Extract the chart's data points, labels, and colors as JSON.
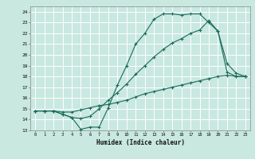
{
  "xlabel": "Humidex (Indice chaleur)",
  "bg_color": "#c8e8e0",
  "grid_color": "#ffffff",
  "line_color": "#1a6b5a",
  "ylim": [
    13,
    24.5
  ],
  "xlim": [
    -0.5,
    23.5
  ],
  "yticks": [
    13,
    14,
    15,
    16,
    17,
    18,
    19,
    20,
    21,
    22,
    23,
    24
  ],
  "xticks": [
    0,
    1,
    2,
    3,
    4,
    5,
    6,
    7,
    8,
    9,
    10,
    11,
    12,
    13,
    14,
    15,
    16,
    17,
    18,
    19,
    20,
    21,
    22,
    23
  ],
  "line1_x": [
    0,
    1,
    2,
    3,
    4,
    5,
    6,
    7,
    8,
    9,
    10,
    11,
    12,
    13,
    14,
    15,
    16,
    17,
    18,
    19,
    20,
    21,
    22,
    23
  ],
  "line1_y": [
    14.8,
    14.8,
    14.8,
    14.5,
    14.2,
    13.1,
    13.3,
    13.3,
    15.1,
    17.2,
    19.0,
    21.0,
    22.0,
    23.3,
    23.8,
    23.8,
    23.7,
    23.8,
    23.8,
    23.0,
    22.2,
    18.4,
    18.0,
    18.0
  ],
  "line2_x": [
    0,
    1,
    2,
    3,
    4,
    5,
    6,
    7,
    8,
    9,
    10,
    11,
    12,
    13,
    14,
    15,
    16,
    17,
    18,
    19,
    20,
    21,
    22,
    23
  ],
  "line2_y": [
    14.8,
    14.8,
    14.8,
    14.7,
    14.7,
    14.9,
    15.1,
    15.3,
    15.4,
    15.6,
    15.8,
    16.1,
    16.4,
    16.6,
    16.8,
    17.0,
    17.2,
    17.4,
    17.6,
    17.8,
    18.0,
    18.1,
    18.0,
    18.0
  ],
  "line3_x": [
    0,
    1,
    2,
    3,
    4,
    5,
    6,
    7,
    8,
    9,
    10,
    11,
    12,
    13,
    14,
    15,
    16,
    17,
    18,
    19,
    20,
    21,
    22,
    23
  ],
  "line3_y": [
    14.8,
    14.8,
    14.8,
    14.5,
    14.2,
    14.1,
    14.3,
    15.0,
    15.8,
    16.5,
    17.3,
    18.2,
    19.0,
    19.8,
    20.5,
    21.1,
    21.5,
    22.0,
    22.3,
    23.2,
    22.2,
    19.2,
    18.3,
    18.0
  ]
}
